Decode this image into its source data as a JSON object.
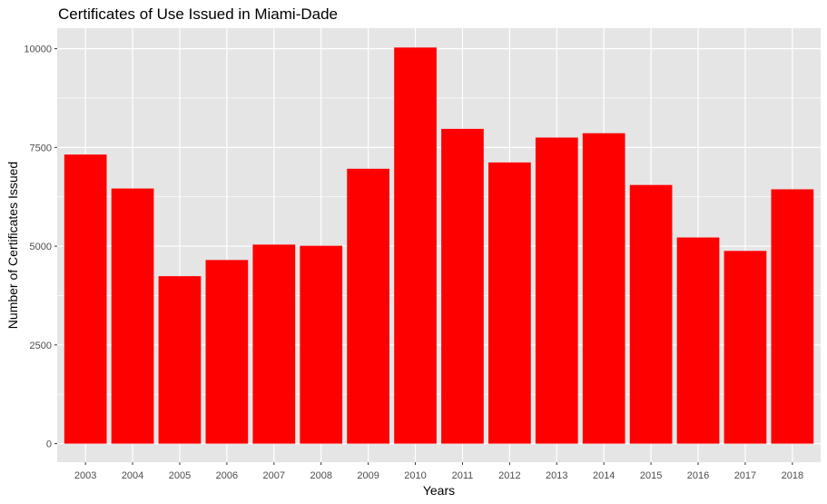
{
  "chart_data": {
    "type": "bar",
    "title": "Certificates of Use Issued in Miami-Dade",
    "xlabel": "Years",
    "ylabel": "Number of Certificates Issued",
    "categories": [
      "2003",
      "2004",
      "2005",
      "2006",
      "2007",
      "2008",
      "2009",
      "2010",
      "2011",
      "2012",
      "2013",
      "2014",
      "2015",
      "2016",
      "2017",
      "2018"
    ],
    "values": [
      7320,
      6460,
      4240,
      4650,
      5040,
      5010,
      6960,
      10030,
      7970,
      7120,
      7750,
      7860,
      6550,
      5220,
      4880,
      6440
    ],
    "yticks": [
      0,
      2500,
      5000,
      7500,
      10000
    ],
    "ytick_labels": [
      "0",
      "2500",
      "5000",
      "7500",
      "10000"
    ],
    "ylim": [
      -470,
      10520
    ],
    "grid": true,
    "bar_color": "#ff0000",
    "panel_color": "#e5e5e5",
    "grid_color": "#ffffff"
  }
}
